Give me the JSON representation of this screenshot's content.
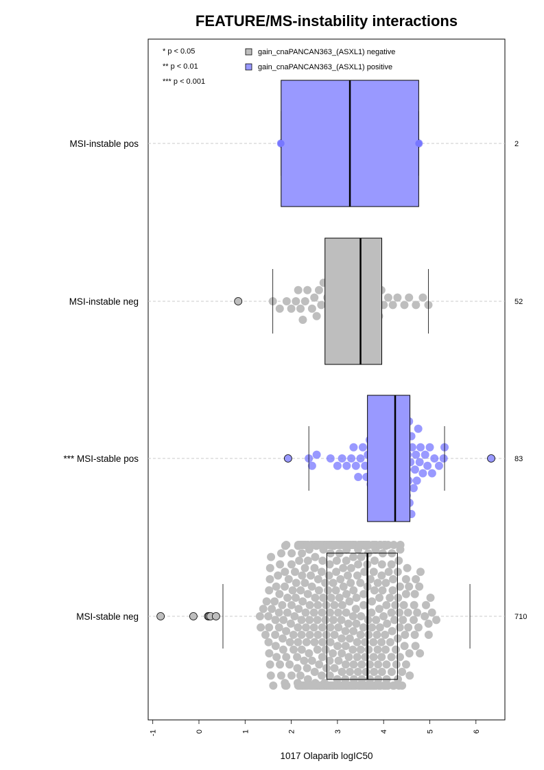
{
  "chart_data": {
    "type": "box",
    "title": "FEATURE/MS-instability interactions",
    "xlabel": "1017 Olaparib logIC50",
    "ylabel": "",
    "xlim": [
      -1.1,
      6.6
    ],
    "xticks": [
      "-1",
      "0",
      "1",
      "2",
      "3",
      "4",
      "5",
      "6"
    ],
    "significance_legend": [
      "* p < 0.05",
      "** p < 0.01",
      "*** p < 0.001"
    ],
    "legend": [
      {
        "label": "gain_cnaPANCAN363_(ASXL1) negative",
        "color": "#bebebe"
      },
      {
        "label": "gain_cnaPANCAN363_(ASXL1) positive",
        "color": "#9999ff"
      }
    ],
    "groups": [
      {
        "label": "MSI-instable pos",
        "n": "2",
        "series": "positive",
        "color": "#9999ff",
        "q1": 1.78,
        "median": 3.27,
        "q3": 4.76,
        "whisker_low": 1.78,
        "whisker_high": 4.76,
        "points": [
          1.78,
          4.76
        ],
        "outliers": []
      },
      {
        "label": "MSI-instable neg",
        "n": "52",
        "series": "negative",
        "color": "#bebebe",
        "q1": 2.73,
        "median": 3.5,
        "q3": 3.96,
        "whisker_low": 1.6,
        "whisker_high": 4.97,
        "points": [
          1.6,
          1.75,
          1.9,
          2.0,
          2.1,
          2.15,
          2.2,
          2.25,
          2.3,
          2.35,
          2.45,
          2.5,
          2.55,
          2.6,
          2.65,
          2.7,
          2.78,
          2.85,
          2.9,
          2.95,
          3.0,
          3.05,
          3.1,
          3.15,
          3.2,
          3.25,
          3.28,
          3.32,
          3.38,
          3.42,
          3.46,
          3.5,
          3.54,
          3.58,
          3.62,
          3.68,
          3.72,
          3.76,
          3.8,
          3.85,
          3.9,
          3.95,
          4.0,
          4.1,
          4.2,
          4.3,
          4.45,
          4.55,
          4.7,
          4.85,
          4.97
        ],
        "outliers": [
          0.85
        ]
      },
      {
        "label": "*** MSI-stable pos",
        "n": "83",
        "series": "positive",
        "color": "#9999ff",
        "q1": 3.65,
        "median": 4.25,
        "q3": 4.57,
        "whisker_low": 2.38,
        "whisker_high": 5.32,
        "points": [
          2.38,
          2.45,
          2.55,
          2.85,
          3.0,
          3.1,
          3.2,
          3.3,
          3.35,
          3.4,
          3.45,
          3.5,
          3.55,
          3.6,
          3.63,
          3.66,
          3.7,
          3.72,
          3.75,
          3.78,
          3.8,
          3.82,
          3.85,
          3.88,
          3.9,
          3.92,
          3.95,
          3.97,
          4.0,
          4.02,
          4.05,
          4.07,
          4.1,
          4.12,
          4.15,
          4.17,
          4.2,
          4.22,
          4.24,
          4.26,
          4.28,
          4.3,
          4.32,
          4.34,
          4.36,
          4.38,
          4.4,
          4.42,
          4.44,
          4.46,
          4.48,
          4.5,
          4.52,
          4.54,
          4.56,
          4.58,
          4.6,
          4.62,
          4.65,
          4.68,
          4.7,
          4.72,
          4.75,
          4.78,
          4.8,
          4.85,
          4.9,
          4.95,
          5.0,
          5.05,
          5.1,
          5.2,
          5.3,
          5.32,
          4.3,
          4.35,
          4.4,
          4.45,
          4.5,
          4.55,
          4.6
        ],
        "outliers": [
          1.93,
          6.33
        ]
      },
      {
        "label": "MSI-stable neg",
        "n": "710",
        "series": "negative",
        "color": "#bebebe",
        "q1": 2.77,
        "median": 3.65,
        "q3": 4.3,
        "whisker_low": 0.52,
        "whisker_high": 5.87,
        "points": [],
        "outliers": [
          -0.83,
          -0.12,
          0.2,
          0.22,
          0.25,
          0.37
        ]
      }
    ]
  }
}
